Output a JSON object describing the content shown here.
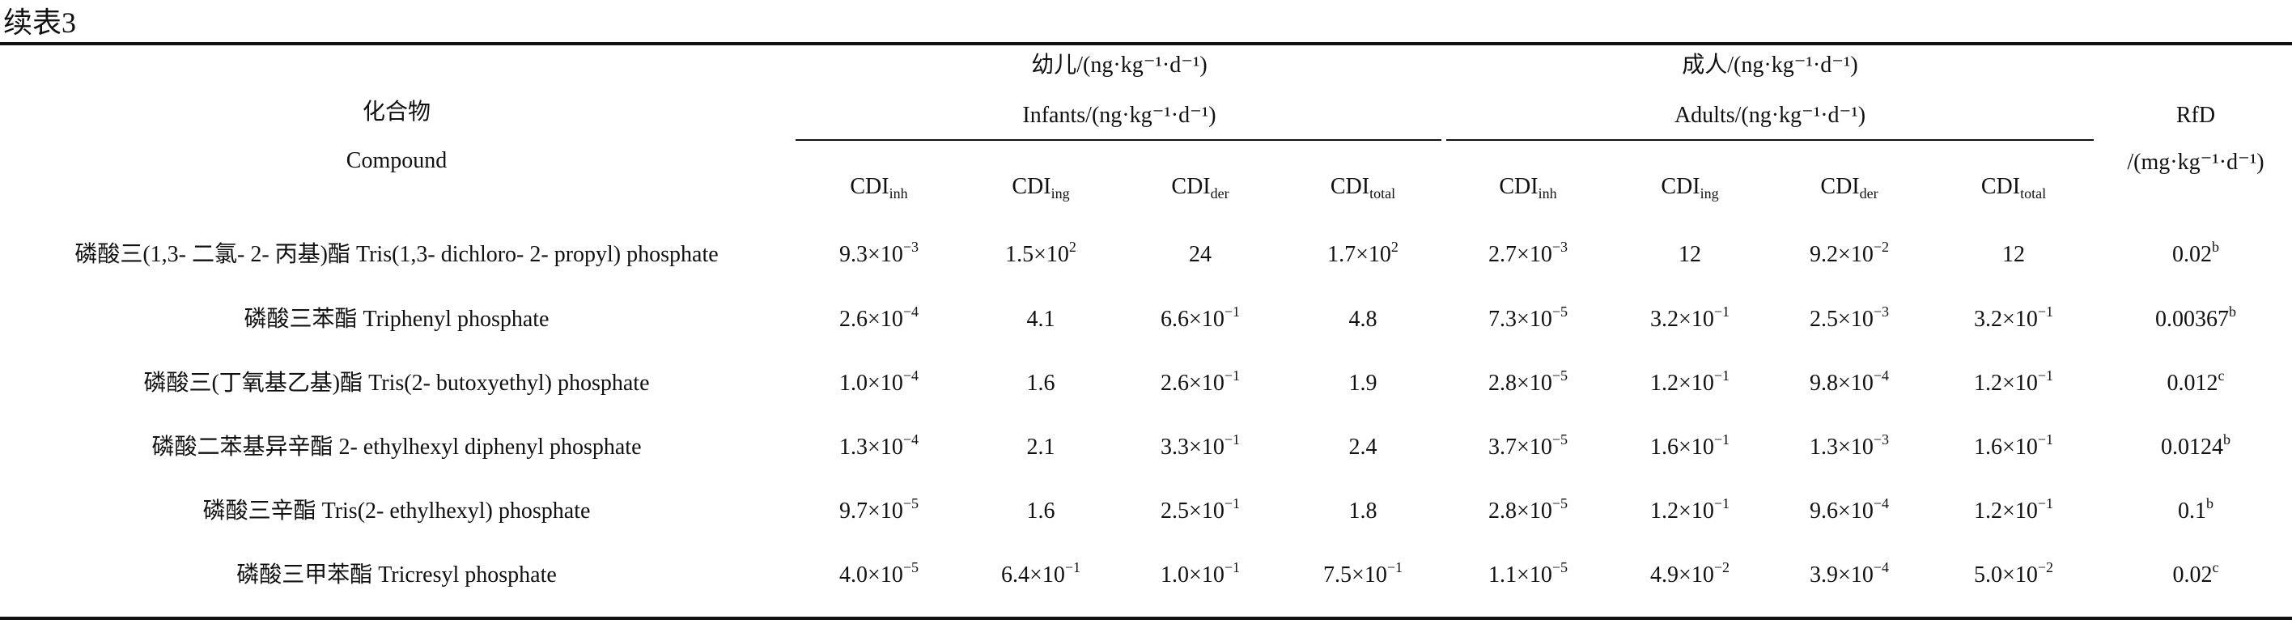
{
  "caption": "续表3",
  "header": {
    "compound_cn": "化合物",
    "compound_en": "Compound",
    "infants_cn": "幼儿/(ng·kg⁻¹·d⁻¹)",
    "infants_en": "Infants/(ng·kg⁻¹·d⁻¹)",
    "adults_cn": "成人/(ng·kg⁻¹·d⁻¹)",
    "adults_en": "Adults/(ng·kg⁻¹·d⁻¹)",
    "rfd": "RfD",
    "rfd_unit": "/(mg·kg⁻¹·d⁻¹)",
    "cdi_base": "CDI",
    "cdi_subs": [
      "inh",
      "ing",
      "der",
      "total",
      "inh",
      "ing",
      "der",
      "total"
    ]
  },
  "rows": [
    {
      "compound": "磷酸三(1,3- 二氯- 2- 丙基)酯 Tris(1,3- dichloro- 2- propyl) phosphate",
      "values": [
        {
          "m": "9.3×10",
          "e": "−3"
        },
        {
          "m": "1.5×10",
          "e": "2"
        },
        {
          "m": "24",
          "e": ""
        },
        {
          "m": "1.7×10",
          "e": "2"
        },
        {
          "m": "2.7×10",
          "e": "−3"
        },
        {
          "m": "12",
          "e": ""
        },
        {
          "m": "9.2×10",
          "e": "−2"
        },
        {
          "m": "12",
          "e": ""
        },
        {
          "m": "0.02",
          "e": "b"
        }
      ]
    },
    {
      "compound": "磷酸三苯酯 Triphenyl phosphate",
      "values": [
        {
          "m": "2.6×10",
          "e": "−4"
        },
        {
          "m": "4.1",
          "e": ""
        },
        {
          "m": "6.6×10",
          "e": "−1"
        },
        {
          "m": "4.8",
          "e": ""
        },
        {
          "m": "7.3×10",
          "e": "−5"
        },
        {
          "m": "3.2×10",
          "e": "−1"
        },
        {
          "m": "2.5×10",
          "e": "−3"
        },
        {
          "m": "3.2×10",
          "e": "−1"
        },
        {
          "m": "0.00367",
          "e": "b"
        }
      ]
    },
    {
      "compound": "磷酸三(丁氧基乙基)酯 Tris(2- butoxyethyl) phosphate",
      "values": [
        {
          "m": "1.0×10",
          "e": "−4"
        },
        {
          "m": "1.6",
          "e": ""
        },
        {
          "m": "2.6×10",
          "e": "−1"
        },
        {
          "m": "1.9",
          "e": ""
        },
        {
          "m": "2.8×10",
          "e": "−5"
        },
        {
          "m": "1.2×10",
          "e": "−1"
        },
        {
          "m": "9.8×10",
          "e": "−4"
        },
        {
          "m": "1.2×10",
          "e": "−1"
        },
        {
          "m": "0.012",
          "e": "c"
        }
      ]
    },
    {
      "compound": "磷酸二苯基异辛酯 2- ethylhexyl diphenyl phosphate",
      "values": [
        {
          "m": "1.3×10",
          "e": "−4"
        },
        {
          "m": "2.1",
          "e": ""
        },
        {
          "m": "3.3×10",
          "e": "−1"
        },
        {
          "m": "2.4",
          "e": ""
        },
        {
          "m": "3.7×10",
          "e": "−5"
        },
        {
          "m": "1.6×10",
          "e": "−1"
        },
        {
          "m": "1.3×10",
          "e": "−3"
        },
        {
          "m": "1.6×10",
          "e": "−1"
        },
        {
          "m": "0.0124",
          "e": "b"
        }
      ]
    },
    {
      "compound": "磷酸三辛酯 Tris(2- ethylhexyl) phosphate",
      "values": [
        {
          "m": "9.7×10",
          "e": "−5"
        },
        {
          "m": "1.6",
          "e": ""
        },
        {
          "m": "2.5×10",
          "e": "−1"
        },
        {
          "m": "1.8",
          "e": ""
        },
        {
          "m": "2.8×10",
          "e": "−5"
        },
        {
          "m": "1.2×10",
          "e": "−1"
        },
        {
          "m": "9.6×10",
          "e": "−4"
        },
        {
          "m": "1.2×10",
          "e": "−1"
        },
        {
          "m": "0.1",
          "e": "b"
        }
      ]
    },
    {
      "compound": "磷酸三甲苯酯 Tricresyl phosphate",
      "values": [
        {
          "m": "4.0×10",
          "e": "−5"
        },
        {
          "m": "6.4×10",
          "e": "−1"
        },
        {
          "m": "1.0×10",
          "e": "−1"
        },
        {
          "m": "7.5×10",
          "e": "−1"
        },
        {
          "m": "1.1×10",
          "e": "−5"
        },
        {
          "m": "4.9×10",
          "e": "−2"
        },
        {
          "m": "3.9×10",
          "e": "−4"
        },
        {
          "m": "5.0×10",
          "e": "−2"
        },
        {
          "m": "0.02",
          "e": "c"
        }
      ]
    }
  ]
}
